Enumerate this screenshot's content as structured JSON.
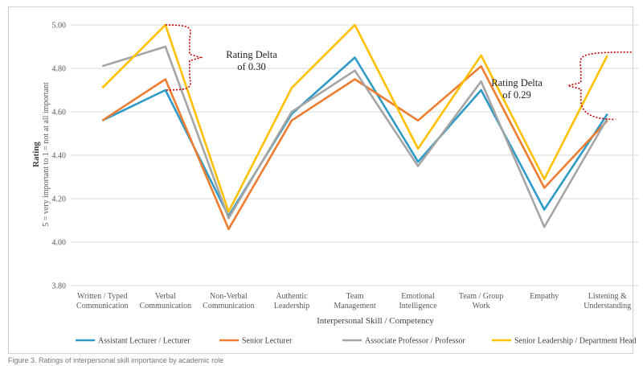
{
  "chart_data": {
    "type": "line",
    "title": "",
    "xlabel": "Interpersonal Skill / Competency",
    "ylabel": "Rating",
    "ylabel_sub": "5 = very important to 1 = not at all important",
    "ylim": [
      3.8,
      5.0
    ],
    "yticks": [
      "3.80",
      "4.00",
      "4.20",
      "4.40",
      "4.60",
      "4.80",
      "5.00"
    ],
    "grid": true,
    "legend_position": "bottom",
    "categories": [
      [
        "Written / Typed",
        "Communication"
      ],
      [
        "Verbal",
        "Communication"
      ],
      [
        "Non-Verbal",
        "Communication"
      ],
      [
        "Authentic",
        "Leadership"
      ],
      [
        "Team",
        "Management"
      ],
      [
        "Emotional",
        "Intelligence"
      ],
      [
        "Team / Group",
        "Work"
      ],
      [
        "Empathy"
      ],
      [
        "Listening &",
        "Understanding"
      ]
    ],
    "series": [
      {
        "name": "Assistant Lecturer / Lecturer",
        "color": "#2e9bc6",
        "values": [
          4.56,
          4.7,
          4.12,
          4.59,
          4.85,
          4.37,
          4.7,
          4.15,
          4.59
        ]
      },
      {
        "name": "Senior Lecturer",
        "color": "#ed7d31",
        "values": [
          4.56,
          4.75,
          4.06,
          4.56,
          4.75,
          4.56,
          4.81,
          4.25,
          4.56
        ]
      },
      {
        "name": "Associate Professor / Professor",
        "color": "#a5a5a5",
        "values": [
          4.81,
          4.9,
          4.11,
          4.6,
          4.79,
          4.35,
          4.74,
          4.07,
          4.57
        ]
      },
      {
        "name": "Senior Leadership / Department Head",
        "color": "#ffc000",
        "values": [
          4.71,
          5.0,
          4.14,
          4.71,
          5.0,
          4.43,
          4.86,
          4.29,
          4.86
        ]
      }
    ],
    "annotations": [
      {
        "text": [
          "Rating Delta",
          "of 0.30"
        ]
      },
      {
        "text": [
          "Rating Delta",
          "of 0.29"
        ]
      }
    ]
  },
  "caption": "Figure 3. Ratings of interpersonal skill importance by academic role"
}
